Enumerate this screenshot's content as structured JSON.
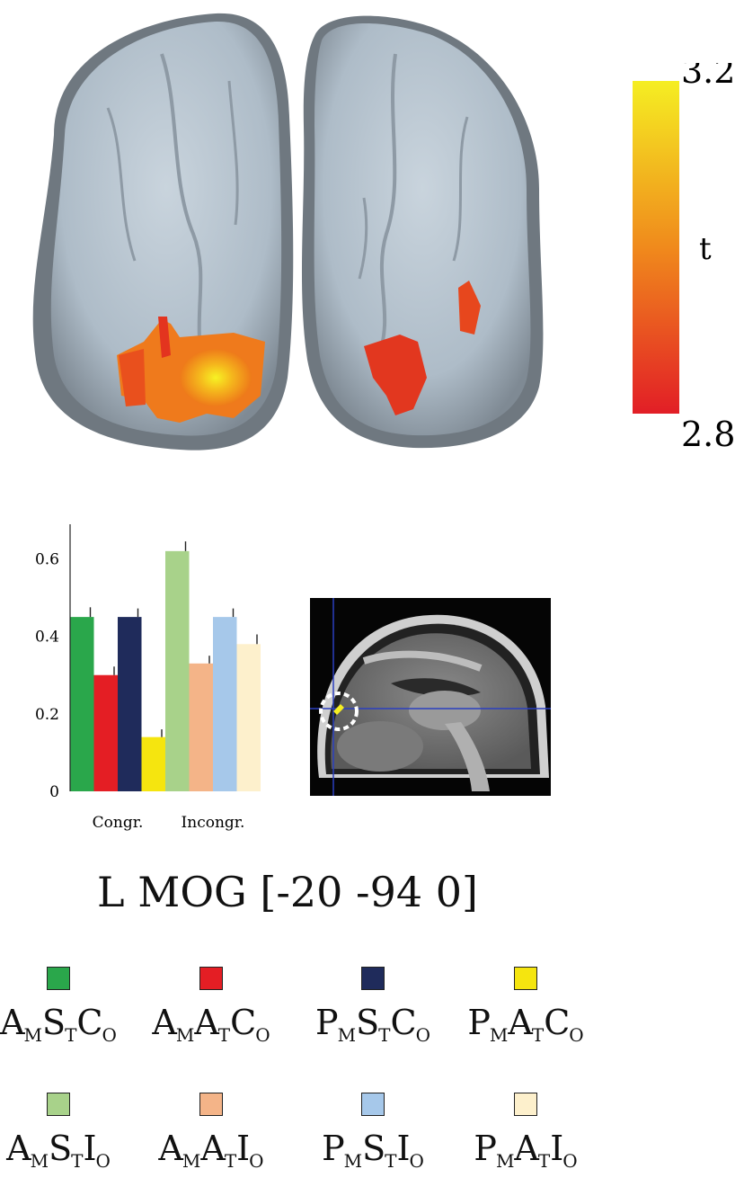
{
  "colorbar": {
    "max_label": "3.2",
    "min_label": "2.8",
    "variable_label": "t",
    "color_top": "#f5ee22",
    "color_mid": "#f08a1c",
    "color_bottom": "#e21e26"
  },
  "chart_data": {
    "type": "bar",
    "categories": [
      "AMSTCO",
      "AMATCO",
      "PMSTCO",
      "PMATCO",
      "AMSTIO",
      "AMATIO",
      "PMSTIO",
      "PMATIO"
    ],
    "values": [
      0.45,
      0.3,
      0.45,
      0.14,
      0.62,
      0.33,
      0.45,
      0.38
    ],
    "errors": [
      0.025,
      0.022,
      0.022,
      0.02,
      0.025,
      0.02,
      0.022,
      0.025
    ],
    "colors": [
      "#2aa74b",
      "#e41e24",
      "#1f2b5b",
      "#f5e50f",
      "#a8d28a",
      "#f4b488",
      "#a6c8ea",
      "#fdf0cc"
    ],
    "ylim": [
      0,
      0.68
    ],
    "yticks": [
      0,
      0.2,
      0.4,
      0.6
    ],
    "ytick_labels": [
      "0",
      "0.2",
      "0.4",
      "0.6"
    ],
    "groups": [
      "Congr.",
      "Incongr."
    ]
  },
  "region_label": "L MOG [-20 -94 0]",
  "legend": [
    {
      "color": "#2aa74b",
      "l1": "A",
      "s1": "M",
      "l2": "S",
      "s2": "T",
      "l3": "C",
      "s3": "O"
    },
    {
      "color": "#e41e24",
      "l1": "A",
      "s1": "M",
      "l2": "A",
      "s2": "T",
      "l3": "C",
      "s3": "O"
    },
    {
      "color": "#1f2b5b",
      "l1": "P",
      "s1": "M",
      "l2": "S",
      "s2": "T",
      "l3": "C",
      "s3": "O"
    },
    {
      "color": "#f5e50f",
      "l1": "P",
      "s1": "M",
      "l2": "A",
      "s2": "T",
      "l3": "C",
      "s3": "O"
    },
    {
      "color": "#a8d28a",
      "l1": "A",
      "s1": "M",
      "l2": "S",
      "s2": "T",
      "l3": "I",
      "s3": "O"
    },
    {
      "color": "#f4b488",
      "l1": "A",
      "s1": "M",
      "l2": "A",
      "s2": "T",
      "l3": "I",
      "s3": "O"
    },
    {
      "color": "#a6c8ea",
      "l1": "P",
      "s1": "M",
      "l2": "S",
      "s2": "T",
      "l3": "I",
      "s3": "O"
    },
    {
      "color": "#fdf0cc",
      "l1": "P",
      "s1": "M",
      "l2": "A",
      "s2": "T",
      "l3": "I",
      "s3": "O"
    }
  ]
}
